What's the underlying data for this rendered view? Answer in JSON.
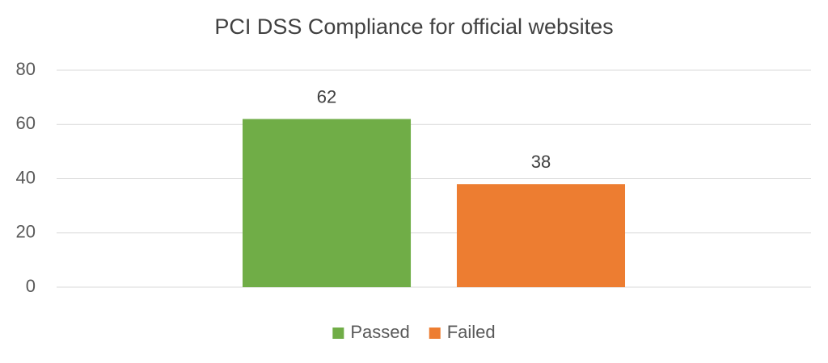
{
  "chart_data": {
    "type": "bar",
    "title": "PCI DSS Compliance for official websites",
    "categories": [
      null
    ],
    "series": [
      {
        "name": "Passed",
        "color": "#70ad47",
        "values": [
          62
        ]
      },
      {
        "name": "Failed",
        "color": "#ed7d31",
        "values": [
          38
        ]
      }
    ],
    "ylim": [
      0,
      80
    ],
    "yticks": [
      0,
      20,
      40,
      60,
      80
    ],
    "grid": true,
    "legend": "bottom",
    "data_labels": true
  }
}
